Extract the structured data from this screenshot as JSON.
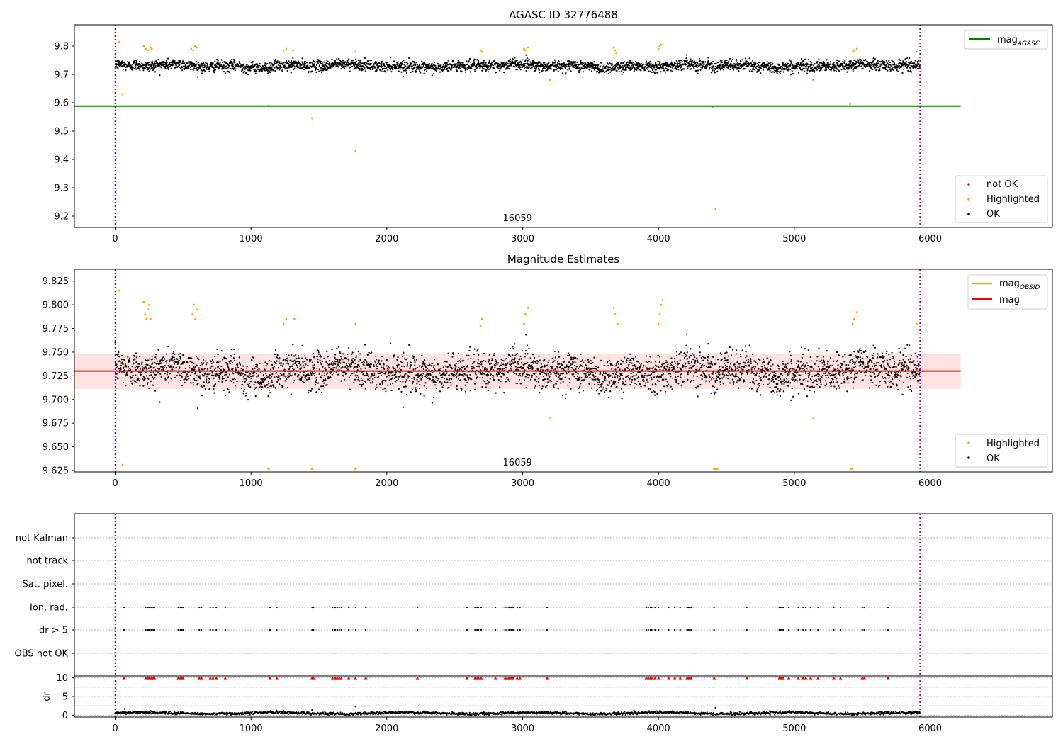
{
  "chart_data": [
    {
      "type": "scatter",
      "title": "AGASC ID 32776488",
      "xlim": [
        -300,
        6900
      ],
      "ylim": [
        9.16,
        9.875
      ],
      "x_ticks": [
        0,
        1000,
        2000,
        3000,
        4000,
        5000,
        6000
      ],
      "y_ticks": [
        9.2,
        9.3,
        9.4,
        9.5,
        9.6,
        9.7,
        9.8
      ],
      "obsid_boundaries": [
        0,
        5925
      ],
      "obsid_label": {
        "text": "16059",
        "x": 2962
      },
      "mag_agasc": 9.588,
      "reference_line_xrange": [
        -300,
        6225
      ],
      "series": [
        {
          "name": "not OK",
          "color": "#ff0000",
          "points": []
        },
        {
          "name": "Highlighted",
          "color": "#ffa500",
          "points": [
            [
              30,
              9.815
            ],
            [
              55,
              9.63
            ],
            [
              210,
              9.8
            ],
            [
              225,
              9.79
            ],
            [
              240,
              9.785
            ],
            [
              260,
              9.795
            ],
            [
              270,
              9.79
            ],
            [
              560,
              9.79
            ],
            [
              575,
              9.785
            ],
            [
              590,
              9.8
            ],
            [
              600,
              9.795
            ],
            [
              1130,
              9.59
            ],
            [
              1240,
              9.785
            ],
            [
              1260,
              9.79
            ],
            [
              1310,
              9.785
            ],
            [
              1450,
              9.545
            ],
            [
              1770,
              9.43
            ],
            [
              1770,
              9.78
            ],
            [
              2690,
              9.785
            ],
            [
              2700,
              9.78
            ],
            [
              3010,
              9.79
            ],
            [
              3020,
              9.785
            ],
            [
              3040,
              9.795
            ],
            [
              3200,
              9.68
            ],
            [
              3670,
              9.795
            ],
            [
              3680,
              9.785
            ],
            [
              3690,
              9.775
            ],
            [
              4000,
              9.79
            ],
            [
              4010,
              9.8
            ],
            [
              4020,
              9.805
            ],
            [
              4400,
              9.585
            ],
            [
              4420,
              9.225
            ],
            [
              5140,
              9.68
            ],
            [
              5410,
              9.595
            ],
            [
              5430,
              9.78
            ],
            [
              5440,
              9.785
            ],
            [
              5460,
              9.79
            ],
            [
              5900,
              9.78
            ]
          ]
        },
        {
          "name": "OK",
          "color": "#000000",
          "points": []
        }
      ],
      "legends": [
        {
          "location": "top-right",
          "entries": [
            {
              "label": "mag",
              "sub": "AGASC",
              "color": "#008000",
              "kind": "line"
            }
          ]
        },
        {
          "location": "bottom-right",
          "entries": [
            {
              "label": "not OK",
              "color": "#ff0000",
              "kind": "point"
            },
            {
              "label": "Highlighted",
              "color": "#ffa500",
              "kind": "point"
            },
            {
              "label": "OK",
              "color": "#000000",
              "kind": "point"
            }
          ]
        }
      ]
    },
    {
      "type": "scatter",
      "title": "Magnitude Estimates",
      "xlim": [
        -300,
        6900
      ],
      "ylim": [
        9.6235,
        9.8375
      ],
      "x_ticks": [
        0,
        1000,
        2000,
        3000,
        4000,
        5000,
        6000
      ],
      "y_ticks": [
        9.625,
        9.65,
        9.675,
        9.7,
        9.725,
        9.75,
        9.775,
        9.8,
        9.825
      ],
      "obsid_boundaries": [
        0,
        5925
      ],
      "obsid_label": {
        "text": "16059",
        "x": 2962
      },
      "mag": 9.73,
      "mag_band": [
        9.711,
        9.748
      ],
      "mag_obsid": 9.73,
      "reference_line_xrange": [
        -300,
        6225
      ],
      "series": [
        {
          "name": "Highlighted",
          "color": "#ffa500",
          "points": [
            [
              30,
              9.815
            ],
            [
              55,
              9.631
            ],
            [
              210,
              9.803
            ],
            [
              220,
              9.79
            ],
            [
              230,
              9.785
            ],
            [
              240,
              9.795
            ],
            [
              250,
              9.8
            ],
            [
              260,
              9.785
            ],
            [
              570,
              9.79
            ],
            [
              580,
              9.8
            ],
            [
              590,
              9.785
            ],
            [
              600,
              9.795
            ],
            [
              1240,
              9.78
            ],
            [
              1260,
              9.785
            ],
            [
              1320,
              9.785
            ],
            [
              1770,
              9.78
            ],
            [
              2690,
              9.778
            ],
            [
              2700,
              9.785
            ],
            [
              3010,
              9.78
            ],
            [
              3020,
              9.79
            ],
            [
              3040,
              9.797
            ],
            [
              3200,
              9.68
            ],
            [
              3670,
              9.797
            ],
            [
              3680,
              9.79
            ],
            [
              3700,
              9.78
            ],
            [
              4000,
              9.78
            ],
            [
              4010,
              9.79
            ],
            [
              4020,
              9.8
            ],
            [
              4030,
              9.805
            ],
            [
              5140,
              9.68
            ],
            [
              5430,
              9.78
            ],
            [
              5440,
              9.785
            ],
            [
              5460,
              9.792
            ],
            [
              5900,
              9.78
            ]
          ]
        },
        {
          "name": "OK",
          "color": "#000000",
          "points": []
        }
      ],
      "lower_limit_markers": [
        1130,
        1450,
        1770,
        4410,
        4420,
        4430,
        5420
      ],
      "legends": [
        {
          "location": "top-right",
          "entries": [
            {
              "label": "mag",
              "sub": "OBSID",
              "color": "#ffa500",
              "kind": "line"
            },
            {
              "label": "mag",
              "sub": "",
              "color": "#ff0000",
              "kind": "line"
            }
          ]
        },
        {
          "location": "bottom-right",
          "entries": [
            {
              "label": "Highlighted",
              "color": "#ffa500",
              "kind": "point"
            },
            {
              "label": "OK",
              "color": "#000000",
              "kind": "point"
            }
          ]
        }
      ]
    },
    {
      "type": "scatter",
      "xlim": [
        -300,
        6900
      ],
      "x_ticks": [
        0,
        1000,
        2000,
        3000,
        4000,
        5000,
        6000
      ],
      "obsid_boundaries": [
        0,
        5925
      ],
      "flag_rows": [
        "not Kalman",
        "not track",
        "Sat. pixel.",
        "Ion. rad.",
        "dr > 5",
        "OBS not OK"
      ],
      "flag_times": [
        65,
        225,
        240,
        250,
        265,
        280,
        290,
        465,
        480,
        490,
        500,
        620,
        635,
        700,
        720,
        745,
        810,
        1140,
        1190,
        1450,
        1460,
        1600,
        1620,
        1635,
        1650,
        1665,
        1720,
        1770,
        1845,
        2225,
        2590,
        2650,
        2665,
        2675,
        2695,
        2800,
        2870,
        2885,
        2900,
        2915,
        2930,
        2960,
        2980,
        3180,
        3910,
        3925,
        3940,
        3950,
        3975,
        4000,
        4075,
        4120,
        4160,
        4210,
        4220,
        4230,
        4240,
        4410,
        4650,
        4890,
        4900,
        4910,
        4920,
        4960,
        5030,
        5065,
        5085,
        5120,
        5175,
        5290,
        5340,
        5500,
        5515,
        5690
      ],
      "dr_ylim": [
        -0.5,
        10.5
      ],
      "dr_ticks": [
        0,
        5,
        10
      ],
      "dr_ylabel": "dr",
      "dr_spikes": [
        [
          70,
          1.7
        ],
        [
          1450,
          1.4
        ],
        [
          1770,
          2.3
        ],
        [
          4420,
          2.0
        ]
      ]
    }
  ]
}
